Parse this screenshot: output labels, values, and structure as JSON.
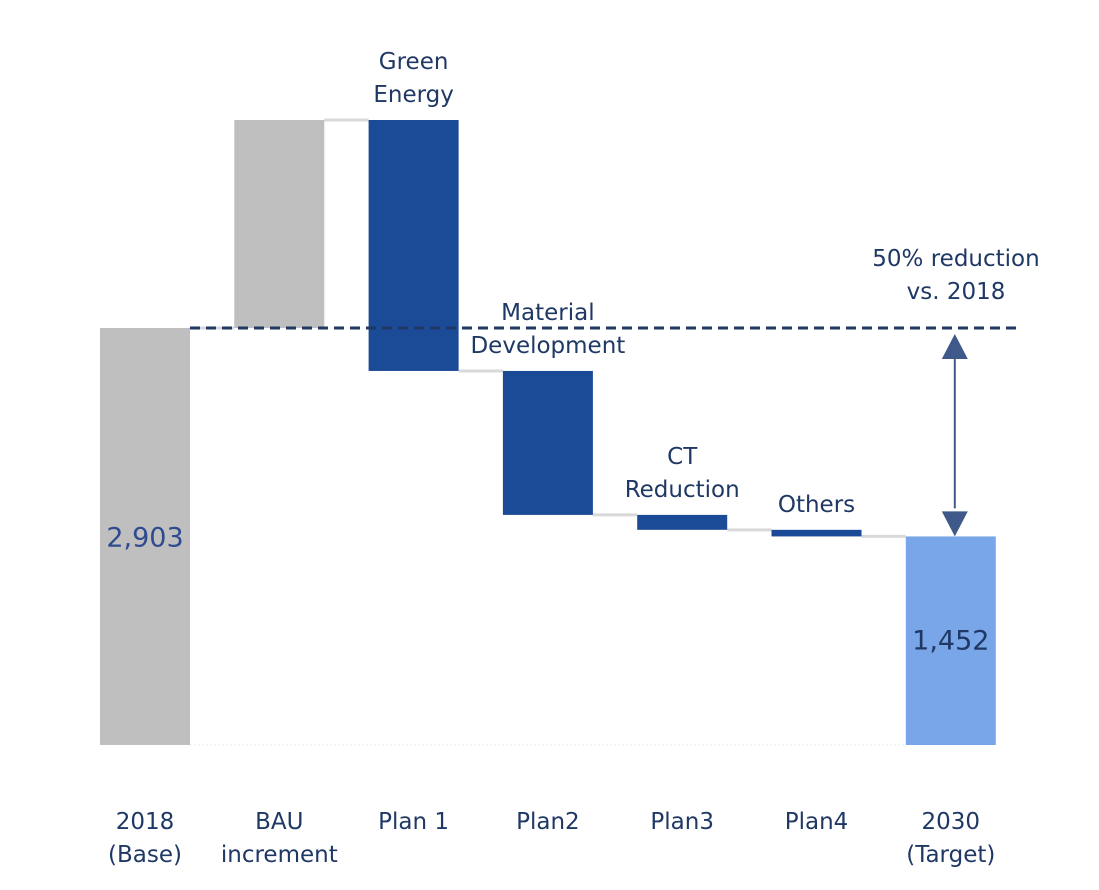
{
  "chart_data": {
    "type": "waterfall",
    "categories": [
      "2018\n(Base)",
      "BAU\nincrement",
      "Plan 1",
      "Plan2",
      "Plan3",
      "Plan4",
      "2030\n(Target)"
    ],
    "measure": [
      "total",
      "relative",
      "relative",
      "relative",
      "relative",
      "relative",
      "total"
    ],
    "values": [
      2903,
      1448,
      -1747,
      -1002,
      -104,
      -46,
      1452
    ],
    "value_labels": [
      "2,903",
      null,
      null,
      null,
      null,
      null,
      "1,452"
    ],
    "bar_labels": [
      null,
      null,
      "Green\nEnergy",
      "Material\nDevelopment",
      "CT\nReduction",
      "Others",
      null
    ],
    "colors": [
      "#bfbfbf",
      "#bfbfbf",
      "#1b4a96",
      "#1b4a96",
      "#1b4a96",
      "#1b4a96",
      "#78a6e8"
    ],
    "annotation": "50% reduction\nvs. 2018"
  }
}
